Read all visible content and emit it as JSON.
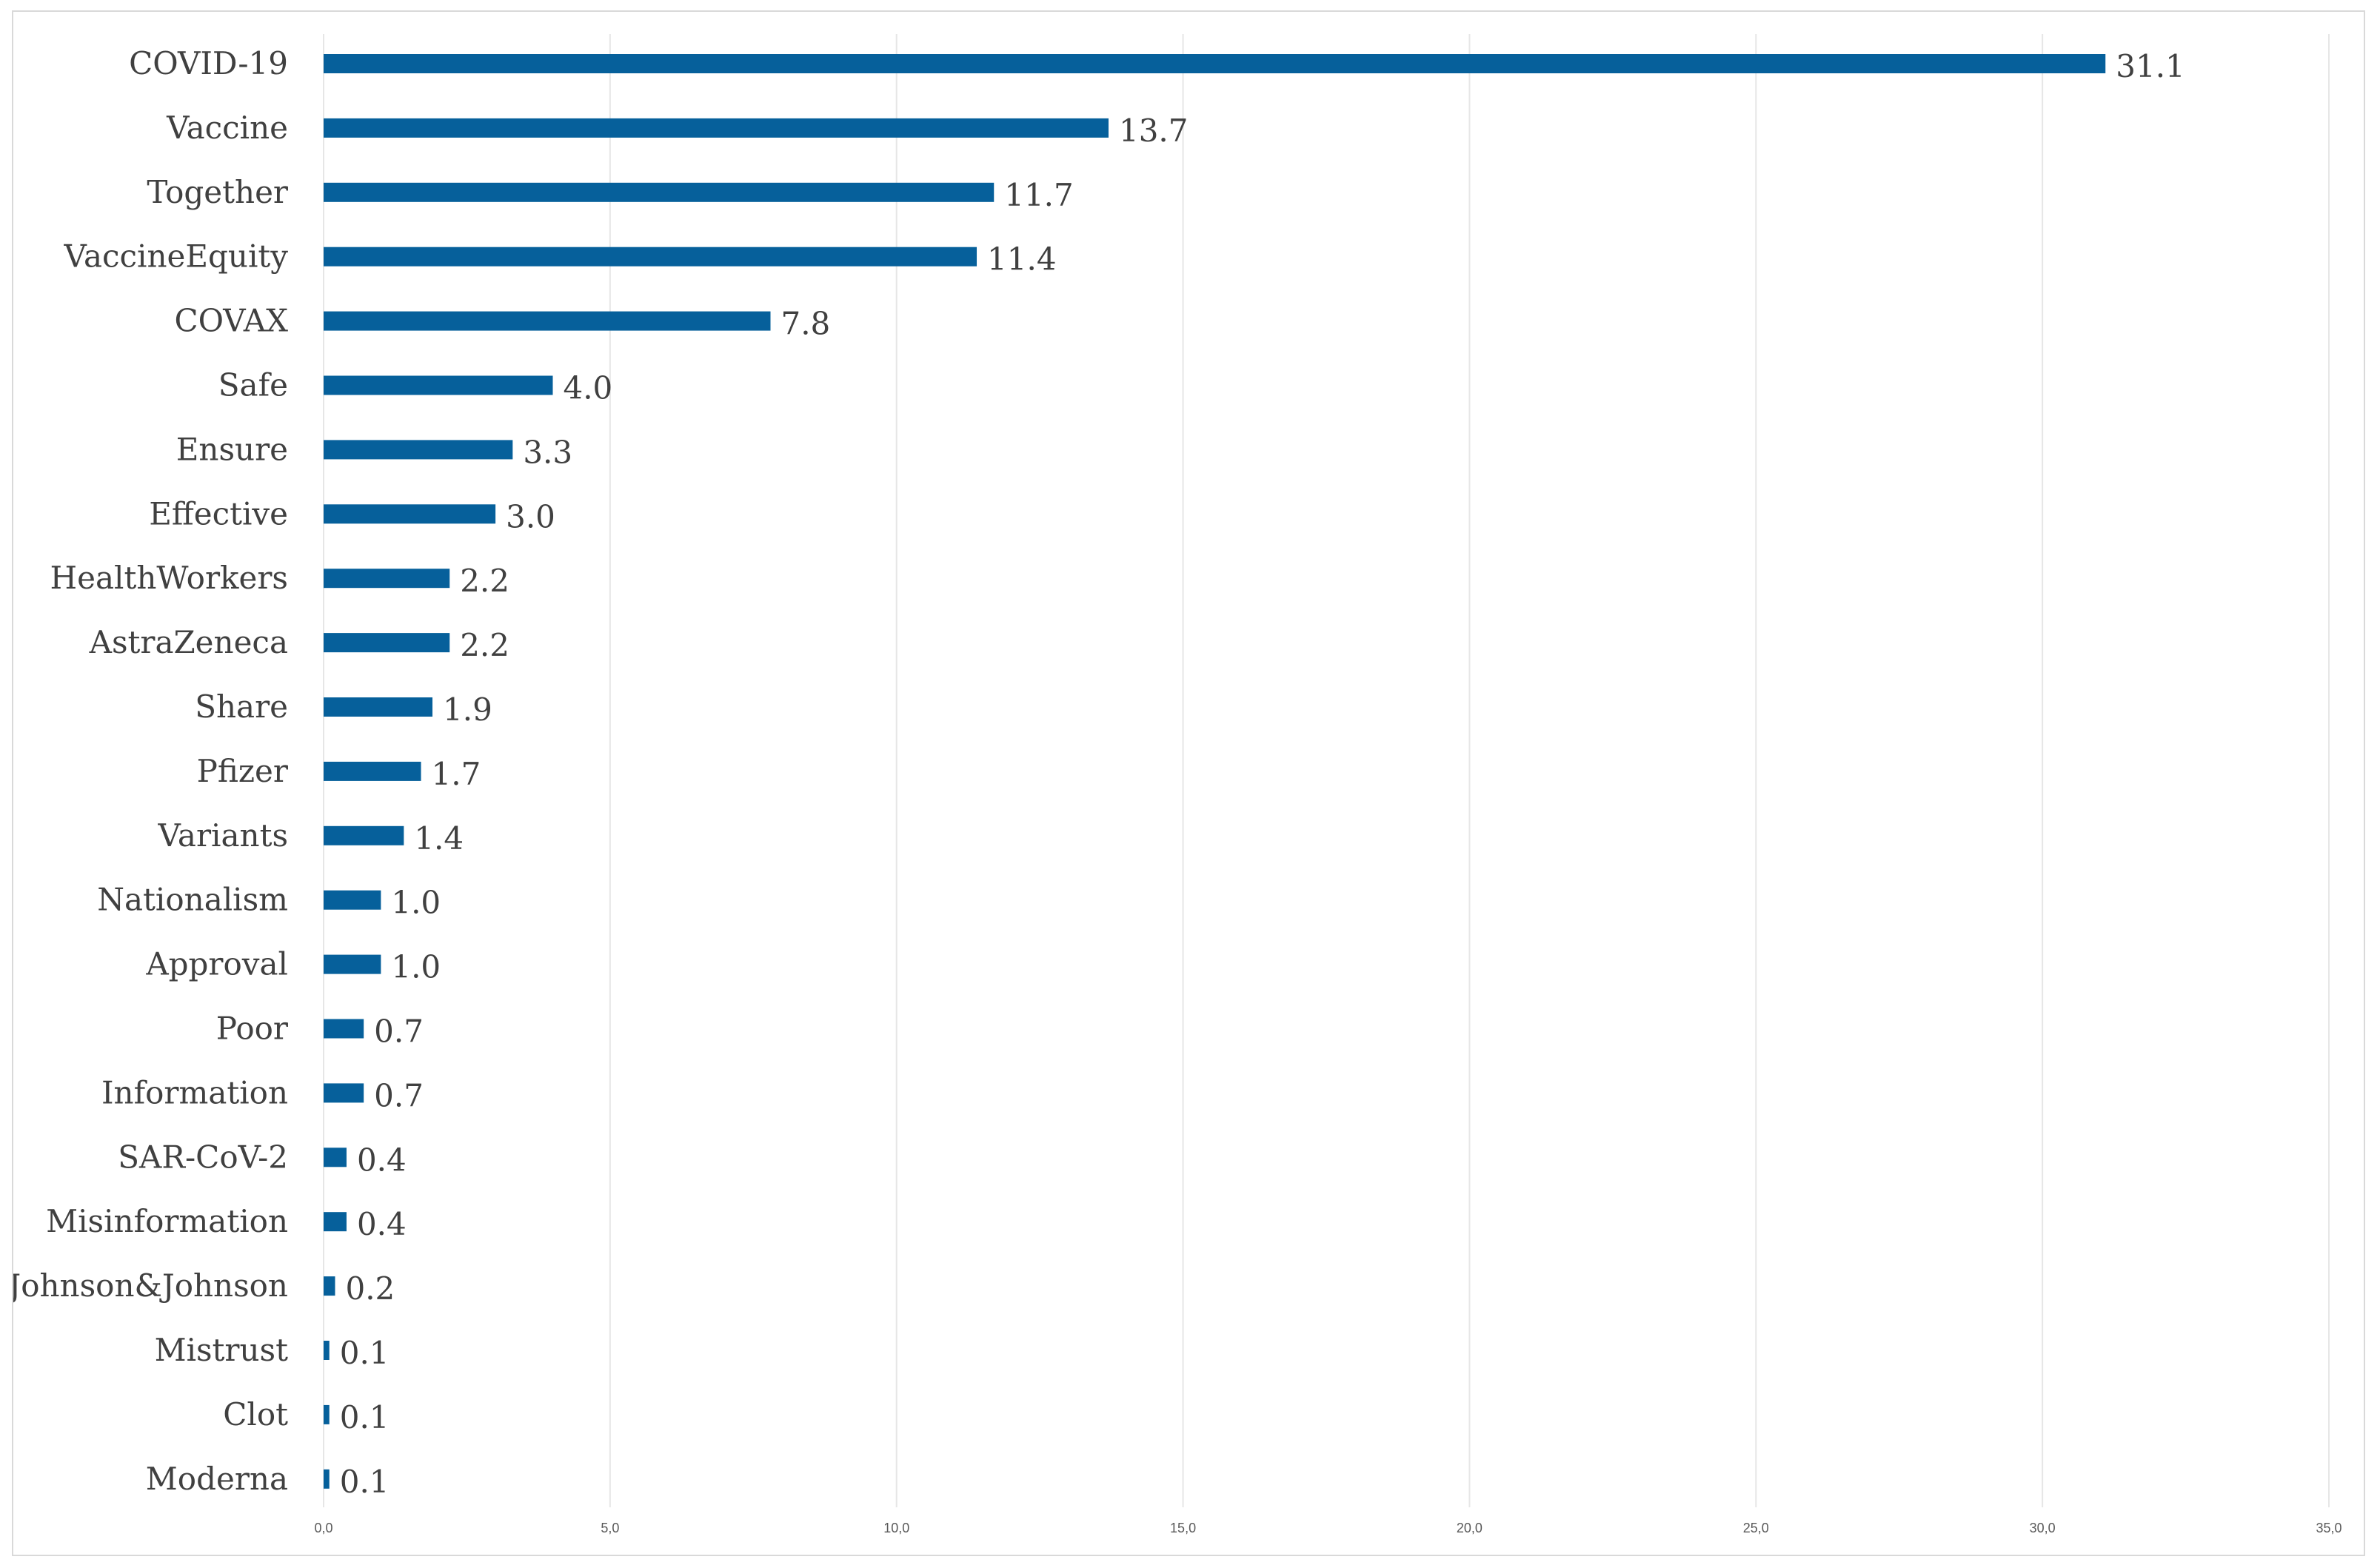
{
  "chart_data": {
    "type": "bar",
    "orientation": "horizontal",
    "title": "",
    "xlabel": "",
    "ylabel": "",
    "categories": [
      "COVID-19",
      "Vaccine",
      "Together",
      "VaccineEquity",
      "COVAX",
      "Safe",
      "Ensure",
      "Effective",
      "HealthWorkers",
      "AstraZeneca",
      "Share",
      "Pfizer",
      "Variants",
      "Nationalism",
      "Approval",
      "Poor",
      "Information",
      "SAR-CoV-2",
      "Misinformation",
      "Johnson&Johnson",
      "Mistrust",
      "Clot",
      "Moderna"
    ],
    "values": [
      31.1,
      13.7,
      11.7,
      11.4,
      7.8,
      4.0,
      3.3,
      3.0,
      2.2,
      2.2,
      1.9,
      1.7,
      1.4,
      1.0,
      1.0,
      0.7,
      0.7,
      0.4,
      0.4,
      0.2,
      0.1,
      0.1,
      0.1
    ],
    "value_labels": [
      "31.1",
      "13.7",
      "11.7",
      "11.4",
      "7.8",
      "4.0",
      "3.3",
      "3.0",
      "2.2",
      "2.2",
      "1.9",
      "1.7",
      "1.4",
      "1.0",
      "1.0",
      "0.7",
      "0.7",
      "0.4",
      "0.4",
      "0.2",
      "0.1",
      "0.1",
      "0.1"
    ],
    "xlim": [
      0,
      35
    ],
    "x_ticks": [
      0,
      5,
      10,
      15,
      20,
      25,
      30,
      35
    ],
    "x_tick_labels": [
      "0,0",
      "5,0",
      "10,0",
      "15,0",
      "20,0",
      "25,0",
      "30,0",
      "35,0"
    ],
    "grid": "vertical",
    "legend": "none",
    "bar_color": "#06609b"
  }
}
